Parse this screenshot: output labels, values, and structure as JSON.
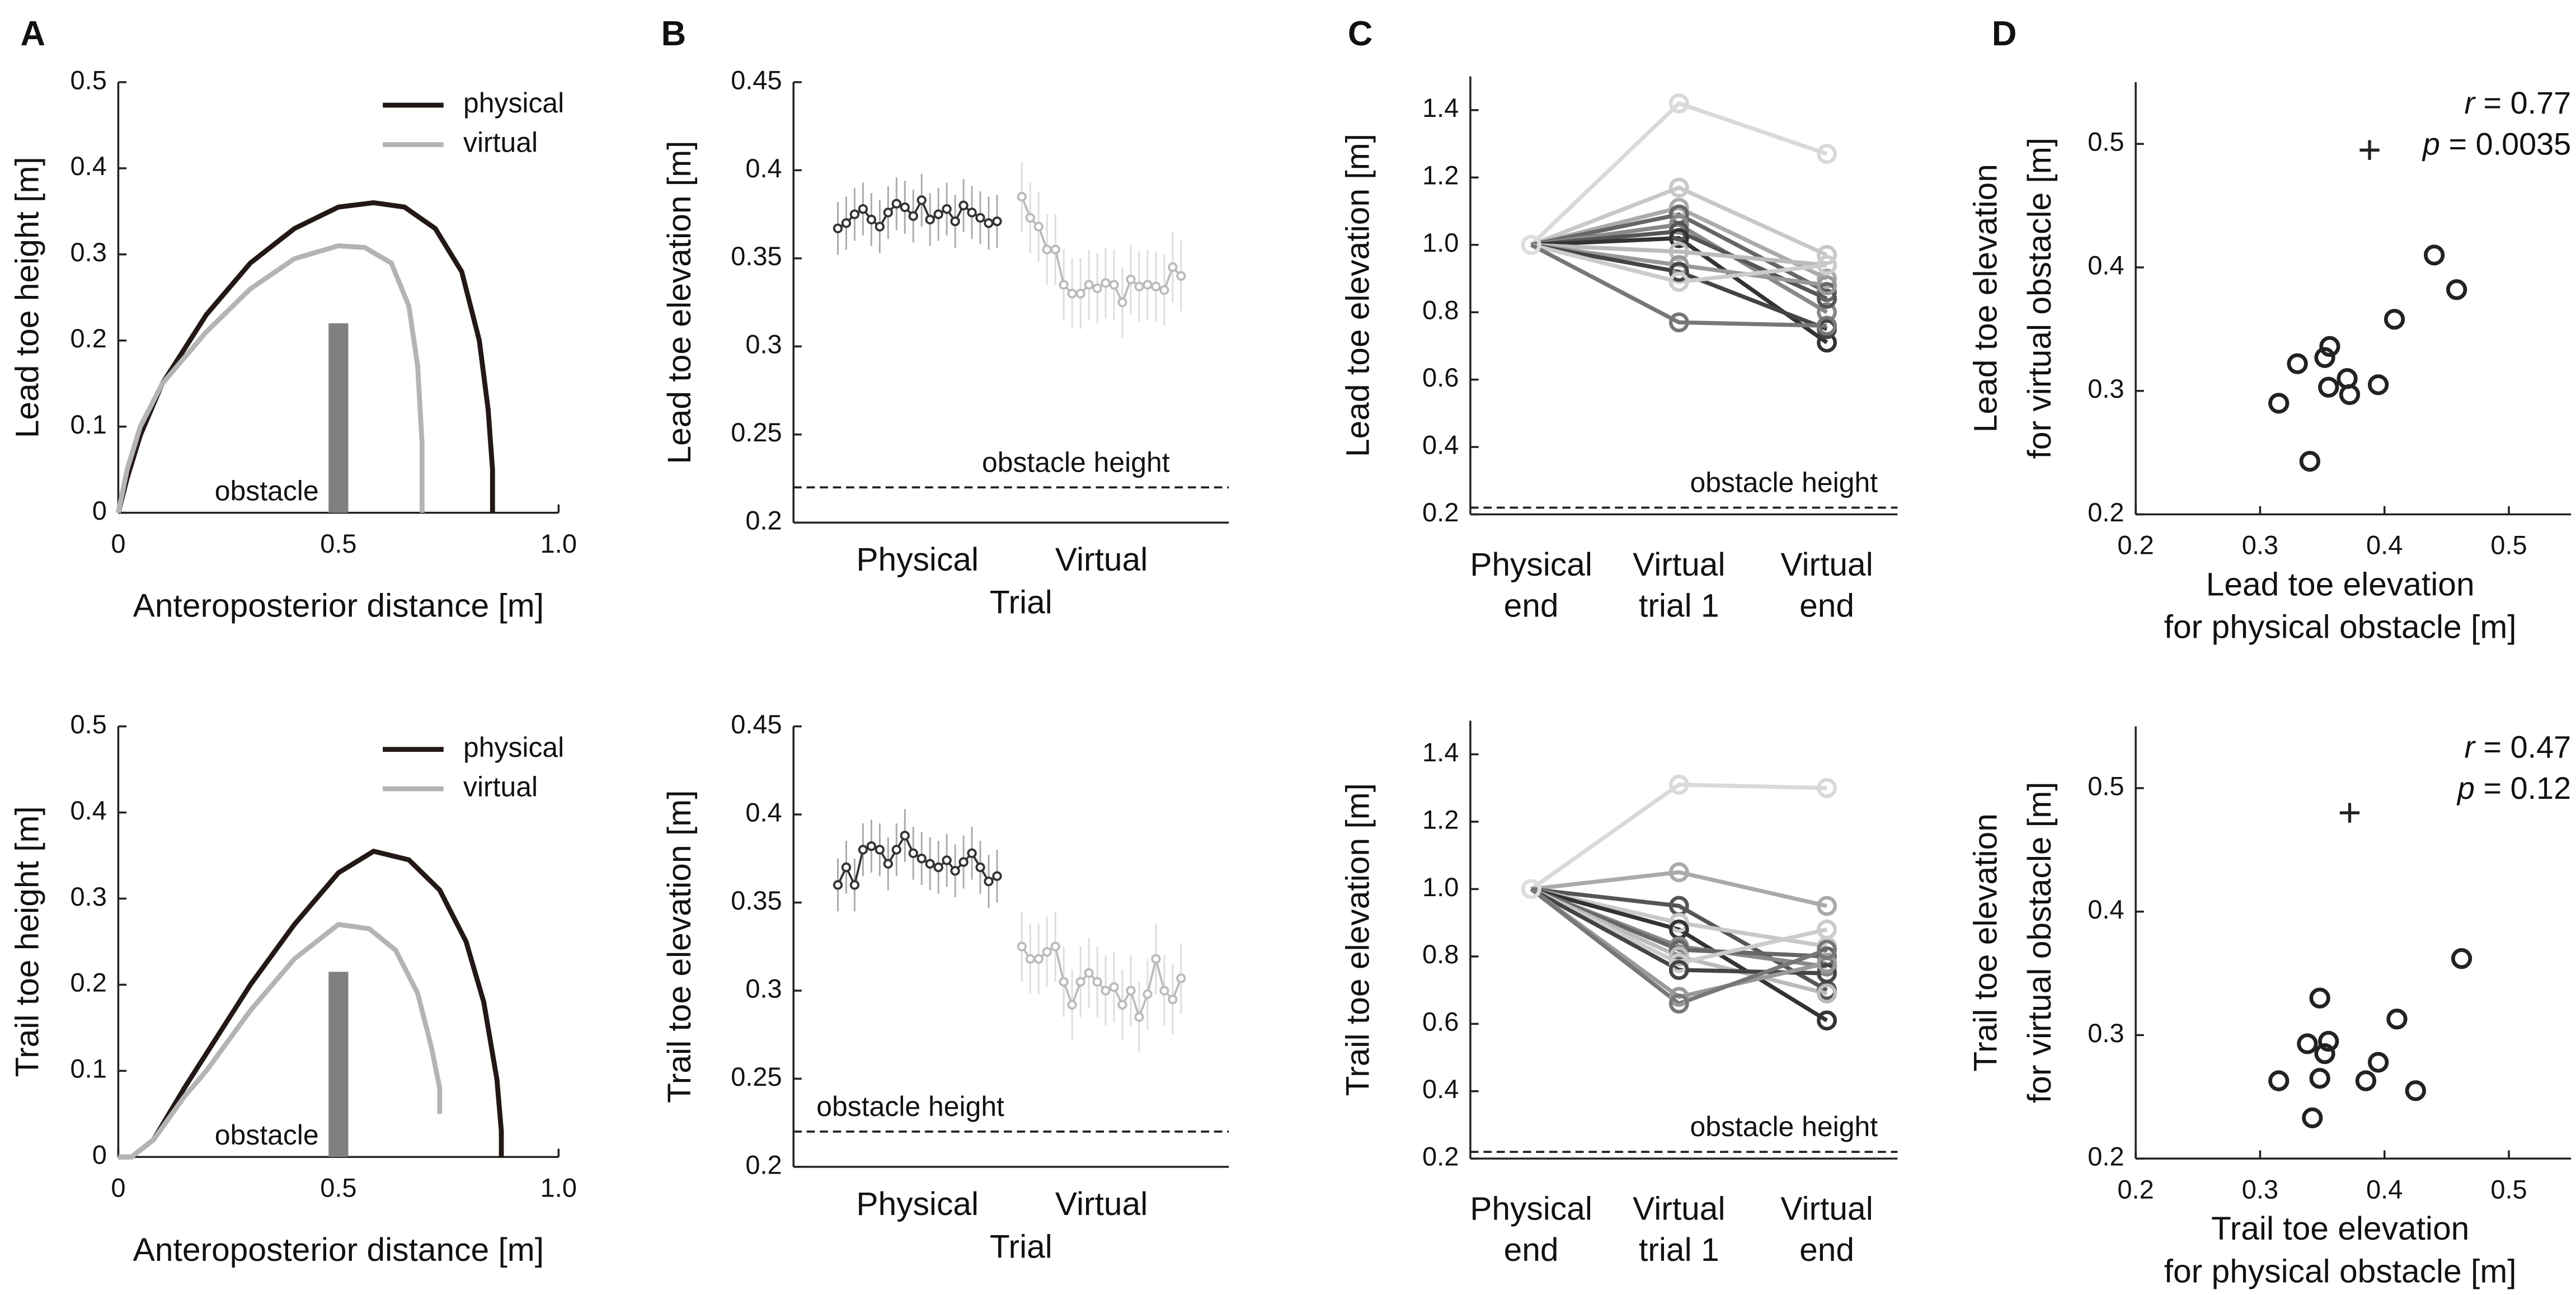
{
  "panel_labels": [
    "A",
    "B",
    "C",
    "D"
  ],
  "chart_data": [
    {
      "type": "line",
      "ylabel": "Lead toe height [m]",
      "xlabel": "Anteroposterior distance [m]",
      "xlim": [
        0,
        1
      ],
      "ylim": [
        0,
        0.5
      ],
      "xticks": [
        0,
        0.5,
        {
          "value": 1,
          "label": "1.0"
        }
      ],
      "yticks": [
        0,
        0.1,
        0.2,
        0.3,
        0.4,
        0.5
      ],
      "legend": "upper right",
      "series": [
        {
          "name": "physical",
          "color": "#231815",
          "x": [
            0,
            0.02,
            0.05,
            0.1,
            0.15,
            0.2,
            0.3,
            0.4,
            0.5,
            0.58,
            0.65,
            0.72,
            0.78,
            0.82,
            0.84,
            0.85,
            0.85
          ],
          "y": [
            0,
            0.04,
            0.09,
            0.15,
            0.19,
            0.23,
            0.29,
            0.33,
            0.355,
            0.36,
            0.355,
            0.33,
            0.28,
            0.2,
            0.12,
            0.05,
            0
          ]
        },
        {
          "name": "virtual",
          "color": "#b4b4b4",
          "x": [
            0,
            0.02,
            0.05,
            0.1,
            0.15,
            0.2,
            0.3,
            0.4,
            0.5,
            0.56,
            0.62,
            0.66,
            0.68,
            0.69,
            0.69
          ],
          "y": [
            0,
            0.05,
            0.1,
            0.15,
            0.18,
            0.21,
            0.26,
            0.295,
            0.31,
            0.308,
            0.29,
            0.24,
            0.17,
            0.08,
            0
          ]
        }
      ],
      "obstacle": {
        "label": "obstacle",
        "x": 0.5,
        "height": 0.22,
        "color": "#808080"
      }
    },
    {
      "type": "errorbar",
      "ylabel": "Lead toe elevation [m]",
      "xlabel": "Trial",
      "group_labels": [
        "Physical",
        "Virtual"
      ],
      "ylim": [
        0.2,
        0.45
      ],
      "yticks": [
        0.2,
        0.25,
        0.3,
        0.35,
        0.4,
        0.45
      ],
      "series": [
        {
          "color": "#333333",
          "error_color": "#aaaaaa",
          "values": [
            0.367,
            0.37,
            0.375,
            0.378,
            0.372,
            0.368,
            0.376,
            0.381,
            0.379,
            0.374,
            0.383,
            0.372,
            0.375,
            0.378,
            0.371,
            0.38,
            0.376,
            0.373,
            0.37,
            0.371
          ],
          "errors": [
            0.015,
            0.015,
            0.015,
            0.015,
            0.015,
            0.015,
            0.015,
            0.015,
            0.015,
            0.015,
            0.015,
            0.015,
            0.015,
            0.015,
            0.015,
            0.015,
            0.015,
            0.015,
            0.015,
            0.015
          ]
        },
        {
          "color": "#bbbbbb",
          "error_color": "#dddddd",
          "values": [
            0.385,
            0.373,
            0.368,
            0.355,
            0.355,
            0.335,
            0.33,
            0.33,
            0.335,
            0.333,
            0.336,
            0.335,
            0.325,
            0.338,
            0.334,
            0.335,
            0.334,
            0.332,
            0.345,
            0.34
          ],
          "errors": [
            0.02,
            0.02,
            0.02,
            0.02,
            0.02,
            0.02,
            0.02,
            0.02,
            0.02,
            0.02,
            0.02,
            0.02,
            0.02,
            0.02,
            0.02,
            0.02,
            0.02,
            0.02,
            0.02,
            0.02
          ]
        }
      ],
      "hline": {
        "value": 0.22,
        "label": "obstacle height"
      }
    },
    {
      "type": "slope",
      "ylabel": "Lead toe elevation [m]",
      "categories": [
        [
          "Physical",
          "end"
        ],
        [
          "Virtual",
          "trial 1"
        ],
        [
          "Virtual",
          "end"
        ]
      ],
      "ylim": [
        0.2,
        1.5
      ],
      "yticks": [
        0.2,
        0.4,
        0.6,
        0.8,
        {
          "value": 1,
          "label": "1.0"
        },
        1.2,
        1.4
      ],
      "series": [
        {
          "color": "#d9d9d9",
          "values": [
            1,
            1.42,
            1.27
          ]
        },
        {
          "color": "#c8c8c8",
          "values": [
            1,
            1.17,
            0.97
          ]
        },
        {
          "color": "#aaaaaa",
          "values": [
            1,
            1.11,
            0.9
          ]
        },
        {
          "color": "#666666",
          "values": [
            1,
            1.09,
            0.86
          ]
        },
        {
          "color": "#888888",
          "values": [
            1,
            1.06,
            0.8
          ]
        },
        {
          "color": "#555555",
          "values": [
            1,
            1.04,
            0.84
          ]
        },
        {
          "color": "#333333",
          "values": [
            1,
            1.02,
            0.71
          ]
        },
        {
          "color": "#bbbbbb",
          "values": [
            1,
            0.98,
            0.94
          ]
        },
        {
          "color": "#999999",
          "values": [
            1,
            0.94,
            0.88
          ]
        },
        {
          "color": "#444444",
          "values": [
            1,
            0.92,
            0.75
          ]
        },
        {
          "color": "#cccccc",
          "values": [
            1,
            0.89,
            0.94
          ]
        },
        {
          "color": "#777777",
          "values": [
            1,
            0.77,
            0.76
          ]
        }
      ],
      "hline": {
        "value": 0.22,
        "label": "obstacle height"
      }
    },
    {
      "type": "scatter",
      "ylabel": [
        "Lead toe elevation",
        "for virtual obstacle [m]"
      ],
      "xlabel": [
        "Lead toe elevation",
        "for physical obstacle [m]"
      ],
      "xlim": [
        0.2,
        0.55
      ],
      "ylim": [
        0.2,
        0.55
      ],
      "xticks": [
        0.2,
        0.3,
        0.4,
        0.5
      ],
      "yticks": [
        0.2,
        0.3,
        0.4,
        0.5
      ],
      "series": [
        {
          "color": "#222222",
          "x": [
            0.315,
            0.33,
            0.34,
            0.352,
            0.355,
            0.356,
            0.37,
            0.372,
            0.395,
            0.408,
            0.44,
            0.458
          ],
          "y": [
            0.29,
            0.322,
            0.243,
            0.327,
            0.303,
            0.336,
            0.31,
            0.297,
            0.305,
            0.358,
            0.41,
            0.382
          ]
        }
      ],
      "outlier": {
        "x": 0.388,
        "y": 0.495
      },
      "annotations": [
        {
          "symbol": "r",
          "text": " = 0.77"
        },
        {
          "symbol": "p",
          "text": " = 0.0035"
        }
      ]
    },
    {
      "type": "line",
      "ylabel": "Trail toe height [m]",
      "xlabel": "Anteroposterior distance [m]",
      "xlim": [
        0,
        1
      ],
      "ylim": [
        0,
        0.5
      ],
      "xticks": [
        0,
        0.5,
        {
          "value": 1,
          "label": "1.0"
        }
      ],
      "yticks": [
        0,
        0.1,
        0.2,
        0.3,
        0.4,
        0.5
      ],
      "legend": "upper right",
      "series": [
        {
          "name": "physical",
          "color": "#231815",
          "x": [
            0,
            0.03,
            0.08,
            0.15,
            0.2,
            0.3,
            0.4,
            0.5,
            0.58,
            0.66,
            0.73,
            0.79,
            0.83,
            0.86,
            0.87,
            0.87
          ],
          "y": [
            0,
            0,
            0.02,
            0.08,
            0.12,
            0.2,
            0.27,
            0.33,
            0.355,
            0.345,
            0.31,
            0.25,
            0.18,
            0.09,
            0.03,
            0
          ]
        },
        {
          "name": "virtual",
          "color": "#b4b4b4",
          "x": [
            0,
            0.03,
            0.08,
            0.15,
            0.2,
            0.3,
            0.4,
            0.5,
            0.57,
            0.63,
            0.68,
            0.71,
            0.73,
            0.73
          ],
          "y": [
            0,
            0,
            0.02,
            0.07,
            0.1,
            0.17,
            0.23,
            0.27,
            0.265,
            0.24,
            0.19,
            0.13,
            0.08,
            0.05
          ]
        }
      ],
      "obstacle": {
        "label": "obstacle",
        "x": 0.5,
        "height": 0.215,
        "color": "#808080"
      }
    },
    {
      "type": "errorbar",
      "ylabel": "Trail toe elevation [m]",
      "xlabel": "Trial",
      "group_labels": [
        "Physical",
        "Virtual"
      ],
      "ylim": [
        0.2,
        0.45
      ],
      "yticks": [
        0.2,
        0.25,
        0.3,
        0.35,
        0.4,
        0.45
      ],
      "series": [
        {
          "color": "#333333",
          "error_color": "#aaaaaa",
          "values": [
            0.36,
            0.37,
            0.36,
            0.38,
            0.382,
            0.38,
            0.372,
            0.38,
            0.388,
            0.378,
            0.375,
            0.372,
            0.37,
            0.374,
            0.368,
            0.373,
            0.378,
            0.37,
            0.362,
            0.365
          ],
          "errors": [
            0.015,
            0.015,
            0.015,
            0.015,
            0.015,
            0.015,
            0.015,
            0.015,
            0.015,
            0.015,
            0.015,
            0.015,
            0.015,
            0.015,
            0.015,
            0.015,
            0.015,
            0.015,
            0.015,
            0.015
          ]
        },
        {
          "color": "#bbbbbb",
          "error_color": "#dddddd",
          "values": [
            0.325,
            0.318,
            0.318,
            0.322,
            0.325,
            0.305,
            0.292,
            0.305,
            0.31,
            0.305,
            0.3,
            0.302,
            0.292,
            0.3,
            0.285,
            0.298,
            0.318,
            0.3,
            0.295,
            0.307
          ],
          "errors": [
            0.02,
            0.02,
            0.02,
            0.02,
            0.02,
            0.02,
            0.02,
            0.02,
            0.02,
            0.02,
            0.02,
            0.02,
            0.02,
            0.02,
            0.02,
            0.02,
            0.02,
            0.02,
            0.02,
            0.02
          ]
        }
      ],
      "hline": {
        "value": 0.22,
        "label": "obstacle height"
      }
    },
    {
      "type": "slope",
      "ylabel": "Trail toe elevation [m]",
      "categories": [
        [
          "Physical",
          "end"
        ],
        [
          "Virtual",
          "trial 1"
        ],
        [
          "Virtual",
          "end"
        ]
      ],
      "ylim": [
        0.2,
        1.5
      ],
      "yticks": [
        0.2,
        0.4,
        0.6,
        0.8,
        {
          "value": 1,
          "label": "1.0"
        },
        1.2,
        1.4
      ],
      "series": [
        {
          "color": "#d9d9d9",
          "values": [
            1,
            1.31,
            1.3
          ]
        },
        {
          "color": "#aaaaaa",
          "values": [
            1,
            1.05,
            0.95
          ]
        },
        {
          "color": "#555555",
          "values": [
            1,
            0.95,
            0.7
          ]
        },
        {
          "color": "#c8c8c8",
          "values": [
            1,
            0.9,
            0.83
          ]
        },
        {
          "color": "#333333",
          "values": [
            1,
            0.88,
            0.61
          ]
        },
        {
          "color": "#888888",
          "values": [
            1,
            0.83,
            0.77
          ]
        },
        {
          "color": "#666666",
          "values": [
            1,
            0.82,
            0.8
          ]
        },
        {
          "color": "#bbbbbb",
          "values": [
            1,
            0.8,
            0.69
          ]
        },
        {
          "color": "#cccccc",
          "values": [
            1,
            0.78,
            0.88
          ]
        },
        {
          "color": "#444444",
          "values": [
            1,
            0.76,
            0.75
          ]
        },
        {
          "color": "#999999",
          "values": [
            1,
            0.68,
            0.78
          ]
        },
        {
          "color": "#777777",
          "values": [
            1,
            0.66,
            0.82
          ]
        }
      ],
      "hline": {
        "value": 0.22,
        "label": "obstacle height"
      }
    },
    {
      "type": "scatter",
      "ylabel": [
        "Trail toe elevation",
        "for virtual obstacle [m]"
      ],
      "xlabel": [
        "Trail toe elevation",
        "for physical obstacle [m]"
      ],
      "xlim": [
        0.2,
        0.55
      ],
      "ylim": [
        0.2,
        0.55
      ],
      "xticks": [
        0.2,
        0.3,
        0.4,
        0.5
      ],
      "yticks": [
        0.2,
        0.3,
        0.4,
        0.5
      ],
      "series": [
        {
          "color": "#222222",
          "x": [
            0.315,
            0.338,
            0.342,
            0.348,
            0.348,
            0.352,
            0.355,
            0.385,
            0.395,
            0.41,
            0.425,
            0.462
          ],
          "y": [
            0.263,
            0.293,
            0.233,
            0.265,
            0.33,
            0.285,
            0.295,
            0.263,
            0.278,
            0.313,
            0.255,
            0.362
          ]
        }
      ],
      "outlier": {
        "x": 0.372,
        "y": 0.48
      },
      "annotations": [
        {
          "symbol": "r",
          "text": " = 0.47"
        },
        {
          "symbol": "p",
          "text": " = 0.12"
        }
      ]
    }
  ]
}
